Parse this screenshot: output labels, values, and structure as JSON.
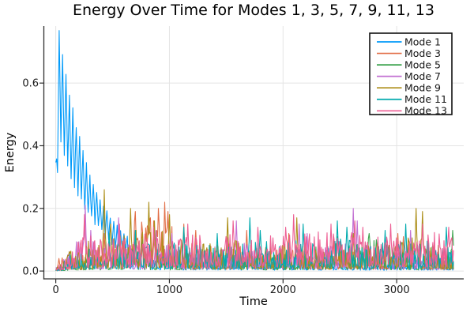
{
  "figure": {
    "title": "Energy Over Time for Modes 1, 3, 5, 7, 9, 11, 13",
    "xlabel": "Time",
    "ylabel": "Energy"
  },
  "chart_data": {
    "type": "line",
    "title": "Energy Over Time for Modes 1, 3, 5, 7, 9, 11, 13",
    "xlabel": "Time",
    "ylabel": "Energy",
    "xlim": [
      -105,
      3590
    ],
    "ylim": [
      -0.025,
      0.782
    ],
    "x_ticks": [
      0,
      1000,
      2000,
      3000
    ],
    "y_ticks": [
      0.0,
      0.2,
      0.4,
      0.6
    ],
    "y_tick_labels": [
      "0.0",
      "0.2",
      "0.4",
      "0.6"
    ],
    "grid": true,
    "grid_color": "#e4e4e4",
    "axis_color": "#2e2e2e",
    "tick_label_color": "#191919",
    "legend": {
      "position": "top-right",
      "border_color": "#111111",
      "background": "#ffffff"
    },
    "t_max": 3500,
    "dt": 7,
    "series": [
      {
        "name": "Mode 1",
        "color": "#009AFA",
        "kind": "damped_oscillation",
        "oscillation": {
          "period": 30,
          "peak_start": 0.77,
          "peak_time": 30,
          "decay_tau": 300,
          "trough_ratio": 0.56,
          "t_end": 630
        },
        "envelope": [
          [
            630,
            0.08
          ],
          [
            900,
            0.06
          ],
          [
            1500,
            0.05
          ],
          [
            2500,
            0.05
          ],
          [
            3500,
            0.05
          ]
        ],
        "spikes": [
          [
            700,
            0.1
          ],
          [
            760,
            0.09
          ]
        ],
        "floor": 0.06,
        "sharpness": 2.0,
        "seed": 101
      },
      {
        "name": "Mode 3",
        "color": "#E26E47",
        "kind": "noise",
        "envelope": [
          [
            0,
            0.045
          ],
          [
            250,
            0.05
          ],
          [
            400,
            0.08
          ],
          [
            550,
            0.1
          ],
          [
            650,
            0.15
          ],
          [
            750,
            0.17
          ],
          [
            820,
            0.16
          ],
          [
            880,
            0.18
          ],
          [
            950,
            0.2
          ],
          [
            1010,
            0.17
          ],
          [
            1080,
            0.13
          ],
          [
            1200,
            0.11
          ],
          [
            1350,
            0.08
          ],
          [
            1500,
            0.07
          ],
          [
            1700,
            0.09
          ],
          [
            1900,
            0.07
          ],
          [
            2100,
            0.08
          ],
          [
            2300,
            0.06
          ],
          [
            2500,
            0.07
          ],
          [
            2700,
            0.06
          ],
          [
            2900,
            0.08
          ],
          [
            3000,
            0.1
          ],
          [
            3100,
            0.09
          ],
          [
            3250,
            0.06
          ],
          [
            3400,
            0.06
          ],
          [
            3500,
            0.05
          ]
        ],
        "spikes": [
          [
            25,
            0.04
          ],
          [
            55,
            0.042
          ],
          [
            430,
            0.12
          ],
          [
            700,
            0.19
          ],
          [
            830,
            0.17
          ],
          [
            900,
            0.2
          ],
          [
            960,
            0.22
          ],
          [
            990,
            0.19
          ],
          [
            1130,
            0.15
          ],
          [
            1230,
            0.13
          ],
          [
            1680,
            0.13
          ],
          [
            2050,
            0.12
          ],
          [
            2440,
            0.1
          ],
          [
            3010,
            0.12
          ],
          [
            3060,
            0.11
          ]
        ],
        "floor": 0.08,
        "sharpness": 1.9,
        "seed": 102
      },
      {
        "name": "Mode 5",
        "color": "#3DA44E",
        "kind": "noise",
        "envelope": [
          [
            0,
            0.03
          ],
          [
            200,
            0.05
          ],
          [
            400,
            0.06
          ],
          [
            700,
            0.07
          ],
          [
            1000,
            0.06
          ],
          [
            1300,
            0.07
          ],
          [
            1600,
            0.06
          ],
          [
            1900,
            0.06
          ],
          [
            2200,
            0.07
          ],
          [
            2450,
            0.09
          ],
          [
            2700,
            0.11
          ],
          [
            2850,
            0.1
          ],
          [
            3000,
            0.07
          ],
          [
            3200,
            0.06
          ],
          [
            3350,
            0.09
          ],
          [
            3500,
            0.1
          ]
        ],
        "spikes": [
          [
            760,
            0.1
          ],
          [
            1510,
            0.09
          ],
          [
            2480,
            0.11
          ],
          [
            2760,
            0.12
          ],
          [
            2820,
            0.1
          ],
          [
            3490,
            0.13
          ]
        ],
        "floor": 0.06,
        "sharpness": 2.0,
        "seed": 103
      },
      {
        "name": "Mode 7",
        "color": "#C270D2",
        "kind": "noise",
        "envelope": [
          [
            0,
            0.04
          ],
          [
            120,
            0.07
          ],
          [
            250,
            0.12
          ],
          [
            400,
            0.09
          ],
          [
            550,
            0.11
          ],
          [
            700,
            0.08
          ],
          [
            850,
            0.1
          ],
          [
            1000,
            0.09
          ],
          [
            1200,
            0.07
          ],
          [
            1400,
            0.08
          ],
          [
            1600,
            0.1
          ],
          [
            1800,
            0.07
          ],
          [
            2000,
            0.08
          ],
          [
            2150,
            0.1
          ],
          [
            2350,
            0.08
          ],
          [
            2600,
            0.12
          ],
          [
            2750,
            0.08
          ],
          [
            2950,
            0.07
          ],
          [
            3100,
            0.09
          ],
          [
            3300,
            0.07
          ],
          [
            3500,
            0.06
          ]
        ],
        "spikes": [
          [
            258,
            0.21
          ],
          [
            310,
            0.13
          ],
          [
            555,
            0.17
          ],
          [
            880,
            0.13
          ],
          [
            1020,
            0.12
          ],
          [
            1590,
            0.16
          ],
          [
            2140,
            0.15
          ],
          [
            2210,
            0.12
          ],
          [
            2615,
            0.2
          ],
          [
            2650,
            0.16
          ],
          [
            3120,
            0.13
          ]
        ],
        "floor": 0.07,
        "sharpness": 2.0,
        "seed": 104
      },
      {
        "name": "Mode 9",
        "color": "#AC8E18",
        "kind": "noise",
        "envelope": [
          [
            0,
            0.04
          ],
          [
            150,
            0.07
          ],
          [
            300,
            0.1
          ],
          [
            450,
            0.12
          ],
          [
            600,
            0.13
          ],
          [
            750,
            0.15
          ],
          [
            850,
            0.13
          ],
          [
            950,
            0.14
          ],
          [
            1050,
            0.12
          ],
          [
            1200,
            0.09
          ],
          [
            1400,
            0.1
          ],
          [
            1550,
            0.11
          ],
          [
            1700,
            0.08
          ],
          [
            1900,
            0.08
          ],
          [
            2100,
            0.11
          ],
          [
            2300,
            0.08
          ],
          [
            2500,
            0.09
          ],
          [
            2700,
            0.08
          ],
          [
            2900,
            0.09
          ],
          [
            3100,
            0.11
          ],
          [
            3250,
            0.12
          ],
          [
            3400,
            0.08
          ],
          [
            3500,
            0.07
          ]
        ],
        "spikes": [
          [
            425,
            0.26
          ],
          [
            480,
            0.15
          ],
          [
            660,
            0.2
          ],
          [
            820,
            0.22
          ],
          [
            870,
            0.16
          ],
          [
            1000,
            0.18
          ],
          [
            1510,
            0.17
          ],
          [
            2120,
            0.17
          ],
          [
            2620,
            0.12
          ],
          [
            3170,
            0.2
          ],
          [
            3230,
            0.19
          ]
        ],
        "floor": 0.07,
        "sharpness": 2.0,
        "seed": 105
      },
      {
        "name": "Mode 11",
        "color": "#00AAAE",
        "kind": "noise",
        "envelope": [
          [
            0,
            0.03
          ],
          [
            150,
            0.06
          ],
          [
            350,
            0.08
          ],
          [
            550,
            0.09
          ],
          [
            750,
            0.1
          ],
          [
            950,
            0.09
          ],
          [
            1150,
            0.1
          ],
          [
            1350,
            0.09
          ],
          [
            1550,
            0.08
          ],
          [
            1750,
            0.1
          ],
          [
            1950,
            0.09
          ],
          [
            2150,
            0.1
          ],
          [
            2350,
            0.1
          ],
          [
            2550,
            0.11
          ],
          [
            2750,
            0.09
          ],
          [
            2950,
            0.1
          ],
          [
            3150,
            0.09
          ],
          [
            3350,
            0.1
          ],
          [
            3500,
            0.09
          ]
        ],
        "spikes": [
          [
            470,
            0.12
          ],
          [
            700,
            0.13
          ],
          [
            1130,
            0.14
          ],
          [
            1420,
            0.12
          ],
          [
            1705,
            0.17
          ],
          [
            1800,
            0.13
          ],
          [
            2180,
            0.15
          ],
          [
            2480,
            0.16
          ],
          [
            2560,
            0.14
          ],
          [
            2900,
            0.13
          ],
          [
            3080,
            0.15
          ],
          [
            3440,
            0.14
          ]
        ],
        "floor": 0.08,
        "sharpness": 2.0,
        "seed": 106
      },
      {
        "name": "Mode 13",
        "color": "#ED5E93",
        "kind": "noise",
        "envelope": [
          [
            0,
            0.035
          ],
          [
            120,
            0.07
          ],
          [
            250,
            0.13
          ],
          [
            400,
            0.1
          ],
          [
            600,
            0.11
          ],
          [
            800,
            0.12
          ],
          [
            1000,
            0.11
          ],
          [
            1200,
            0.12
          ],
          [
            1400,
            0.11
          ],
          [
            1600,
            0.13
          ],
          [
            1800,
            0.12
          ],
          [
            2000,
            0.13
          ],
          [
            2200,
            0.12
          ],
          [
            2400,
            0.13
          ],
          [
            2600,
            0.13
          ],
          [
            2800,
            0.12
          ],
          [
            3000,
            0.11
          ],
          [
            3200,
            0.13
          ],
          [
            3400,
            0.12
          ],
          [
            3500,
            0.11
          ]
        ],
        "spikes": [
          [
            255,
            0.18
          ],
          [
            560,
            0.15
          ],
          [
            860,
            0.14
          ],
          [
            1160,
            0.15
          ],
          [
            1560,
            0.16
          ],
          [
            1780,
            0.14
          ],
          [
            2020,
            0.14
          ],
          [
            2095,
            0.18
          ],
          [
            2420,
            0.15
          ],
          [
            2630,
            0.16
          ],
          [
            2700,
            0.14
          ],
          [
            2950,
            0.15
          ],
          [
            3230,
            0.15
          ],
          [
            3460,
            0.14
          ]
        ],
        "floor": 0.1,
        "sharpness": 1.8,
        "seed": 107
      }
    ]
  }
}
